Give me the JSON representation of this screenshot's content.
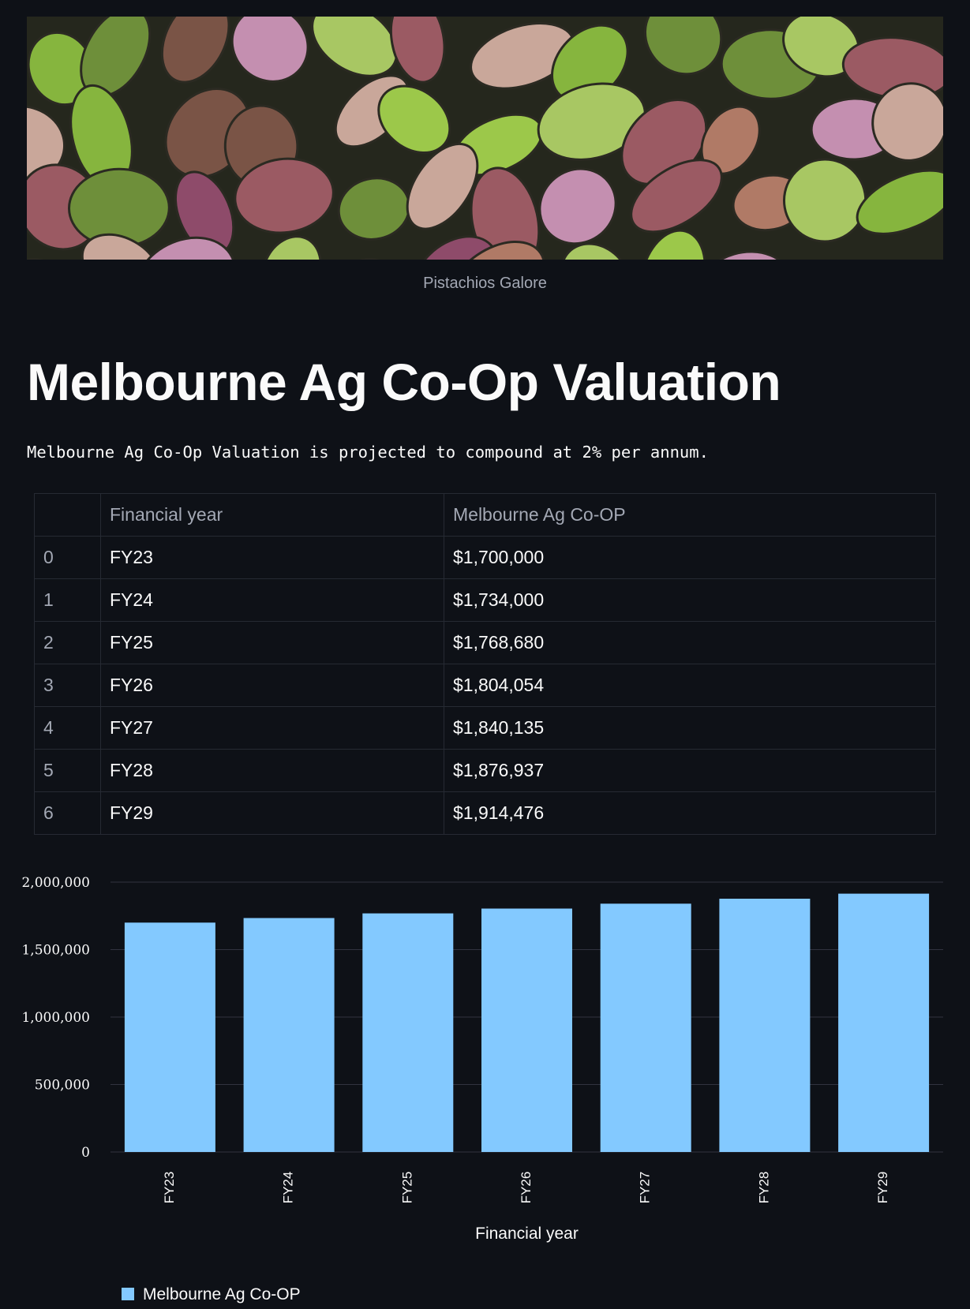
{
  "hero_image": {
    "alt": "pistachios-photo",
    "caption": "Pistachios Galore"
  },
  "page": {
    "title": "Melbourne Ag Co-Op Valuation",
    "description": "Melbourne Ag Co-Op Valuation is projected to compound at 2% per annum."
  },
  "table": {
    "columns": [
      "",
      "Financial year",
      "Melbourne Ag Co-OP"
    ],
    "rows": [
      [
        "0",
        "FY23",
        "$1,700,000"
      ],
      [
        "1",
        "FY24",
        "$1,734,000"
      ],
      [
        "2",
        "FY25",
        "$1,768,680"
      ],
      [
        "3",
        "FY26",
        "$1,804,054"
      ],
      [
        "4",
        "FY27",
        "$1,840,135"
      ],
      [
        "5",
        "FY28",
        "$1,876,937"
      ],
      [
        "6",
        "FY29",
        "$1,914,476"
      ]
    ]
  },
  "colors": {
    "bar": "#83c9ff",
    "background": "#0e1117",
    "grid": "#31333f"
  },
  "chart_data": {
    "type": "bar",
    "categories": [
      "FY23",
      "FY24",
      "FY25",
      "FY26",
      "FY27",
      "FY28",
      "FY29"
    ],
    "series": [
      {
        "name": "Melbourne Ag Co-OP",
        "values": [
          1700000,
          1734000,
          1768680,
          1804054,
          1840135,
          1876937,
          1914476
        ]
      }
    ],
    "xlabel": "Financial year",
    "ylabel": "",
    "ylim": [
      0,
      2000000
    ],
    "yticks": [
      "0",
      "500,000",
      "1,000,000",
      "1,500,000",
      "2,000,000"
    ],
    "grid": true,
    "legend": "bottom-left"
  }
}
